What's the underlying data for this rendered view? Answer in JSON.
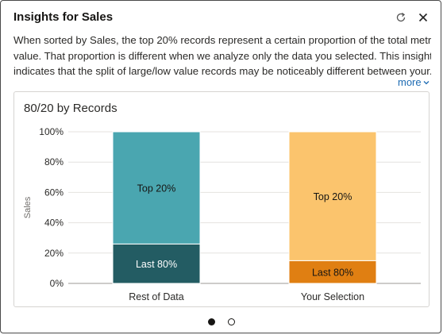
{
  "header": {
    "title": "Insights for Sales",
    "refresh_icon": "refresh-icon",
    "close_icon": "close-icon"
  },
  "description": {
    "lines": [
      "When sorted by Sales, the top 20% records represent a certain proportion of the total metric",
      "value. That proportion is different when we analyze only the data you selected. This insight",
      "indicates that the split of large/low value records may be noticeably different between your..."
    ],
    "more_label": "more"
  },
  "chart_data": {
    "type": "bar",
    "stacked": true,
    "title": "80/20 by Records",
    "ylabel": "Sales",
    "xlabel": "",
    "ylim": [
      0,
      100
    ],
    "y_ticks": [
      "0%",
      "20%",
      "40%",
      "60%",
      "80%",
      "100%"
    ],
    "categories": [
      "Rest of Data",
      "Your Selection"
    ],
    "series": [
      {
        "name": "Last 80%",
        "values": [
          26,
          15
        ],
        "colors": [
          "#235c63",
          "#e07f12"
        ]
      },
      {
        "name": "Top 20%",
        "values": [
          74,
          85
        ],
        "colors": [
          "#4aa6b0",
          "#fbc46d"
        ]
      }
    ],
    "grid": true
  },
  "pager": {
    "pages": 2,
    "active": 0
  }
}
